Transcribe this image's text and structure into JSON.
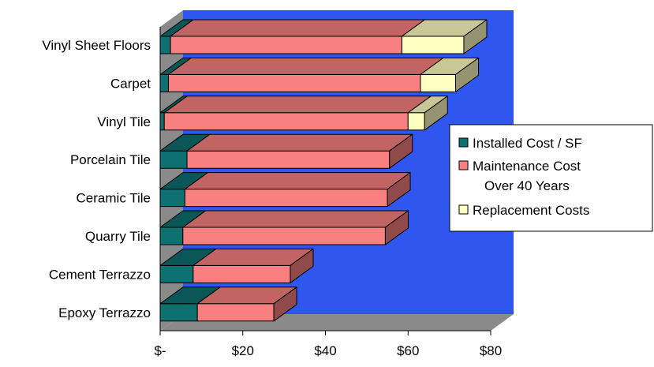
{
  "chart_data": {
    "type": "bar",
    "orientation": "horizontal",
    "stacked": true,
    "three_d": true,
    "categories": [
      "Vinyl Sheet Floors",
      "Carpet",
      "Vinyl Tile",
      "Porcelain Tile",
      "Ceramic Tile",
      "Quarry Tile",
      "Cement Terrazzo",
      "Epoxy Terrazzo"
    ],
    "series": [
      {
        "name": "Installed Cost / SF",
        "color": "#0e7070",
        "values": [
          2.5,
          2,
          1,
          6.5,
          6,
          5.5,
          8,
          9
        ]
      },
      {
        "name": "Maintenance Cost Over 40 Years",
        "color": "#f98080",
        "values": [
          56,
          61,
          59,
          49,
          49,
          49,
          23.5,
          18.5
        ]
      },
      {
        "name": "Replacement Costs",
        "color": "#ffffc2",
        "values": [
          15,
          8.5,
          4,
          0,
          0,
          0,
          0,
          0
        ]
      }
    ],
    "x_ticks": [
      "$-",
      "$20",
      "$40",
      "$60",
      "$80"
    ],
    "xlim": [
      0,
      80
    ],
    "title": "",
    "xlabel": "",
    "ylabel": "",
    "legend_position": "right",
    "grid": false,
    "background_color": "#3056f0",
    "floor_color": "#8a8a8a"
  }
}
